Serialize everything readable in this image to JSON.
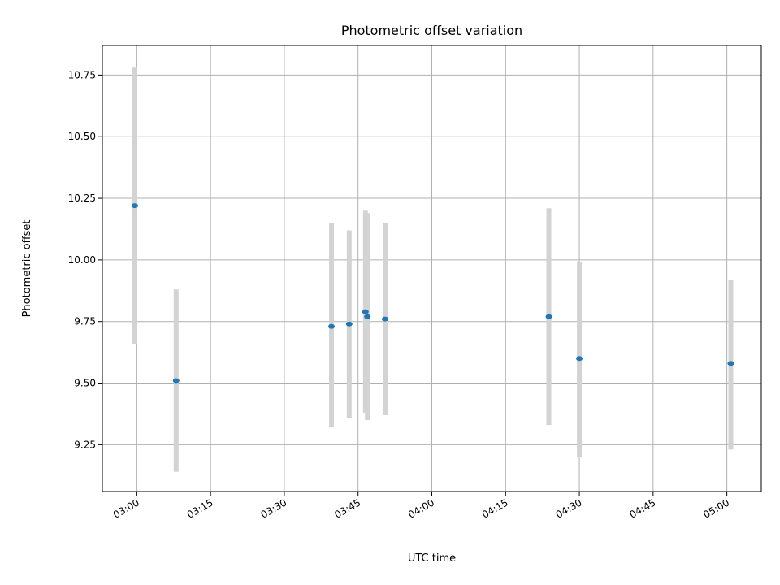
{
  "chart_data": {
    "type": "scatter",
    "title": "Photometric offset variation",
    "xlabel": "UTC time",
    "ylabel": "Photometric offset",
    "grid": true,
    "x_range": [
      "02:53",
      "05:07"
    ],
    "y_range": [
      9.06,
      10.87
    ],
    "x_ticks": [
      "03:00",
      "03:15",
      "03:30",
      "03:45",
      "04:00",
      "04:15",
      "04:30",
      "04:45",
      "05:00"
    ],
    "y_ticks": [
      "9.25",
      "9.50",
      "9.75",
      "10.00",
      "10.25",
      "10.50",
      "10.75"
    ],
    "colors": {
      "point": "#1f77b4",
      "errorbar": "#d3d3d3",
      "grid": "#b0b0b0"
    },
    "points": [
      {
        "x": "02:59:36",
        "y": 10.22,
        "y_low": 9.66,
        "y_high": 10.78
      },
      {
        "x": "03:08:00",
        "y": 9.51,
        "y_low": 9.14,
        "y_high": 9.88
      },
      {
        "x": "03:39:36",
        "y": 9.73,
        "y_low": 9.32,
        "y_high": 10.15
      },
      {
        "x": "03:43:12",
        "y": 9.74,
        "y_low": 9.36,
        "y_high": 10.12
      },
      {
        "x": "03:46:30",
        "y": 9.79,
        "y_low": 9.38,
        "y_high": 10.2
      },
      {
        "x": "03:46:54",
        "y": 9.77,
        "y_low": 9.35,
        "y_high": 10.19
      },
      {
        "x": "03:50:30",
        "y": 9.76,
        "y_low": 9.37,
        "y_high": 10.15
      },
      {
        "x": "04:23:48",
        "y": 9.77,
        "y_low": 9.33,
        "y_high": 10.21
      },
      {
        "x": "04:30:00",
        "y": 9.6,
        "y_low": 9.2,
        "y_high": 9.99
      },
      {
        "x": "05:00:48",
        "y": 9.58,
        "y_low": 9.23,
        "y_high": 9.92
      }
    ]
  }
}
